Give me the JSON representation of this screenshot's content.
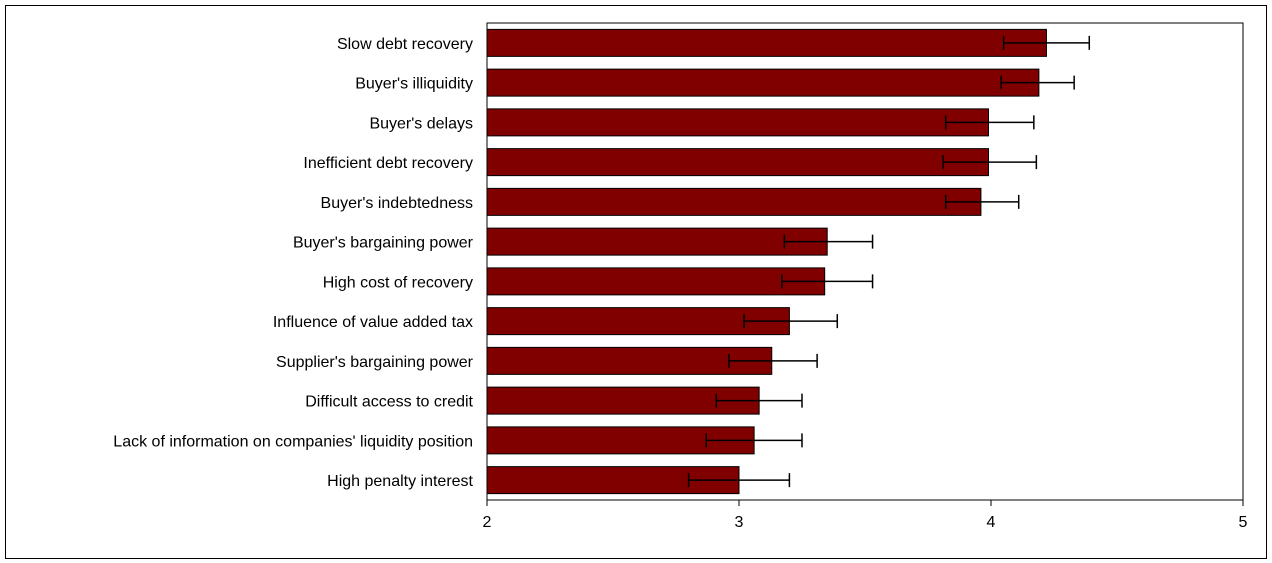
{
  "chart_data": {
    "type": "bar",
    "orientation": "horizontal",
    "title": "",
    "xlabel": "",
    "ylabel": "",
    "xlim": [
      2,
      5
    ],
    "x_ticks": [
      "2",
      "3",
      "4",
      "5"
    ],
    "grid": false,
    "legend": "none",
    "bar_color": "#800000",
    "categories": [
      "Slow debt recovery",
      "Buyer's illiquidity",
      "Buyer's delays",
      "Inefficient debt recovery",
      "Buyer's indebtedness",
      "Buyer's bargaining power",
      "High cost of recovery",
      "Influence of value added tax",
      "Supplier's bargaining power",
      "Difficult access to credit",
      "Lack of information on companies' liquidity position",
      "High penalty interest"
    ],
    "values": [
      4.22,
      4.19,
      3.99,
      3.99,
      3.96,
      3.35,
      3.34,
      3.2,
      3.13,
      3.08,
      3.06,
      3.0
    ],
    "error_low": [
      4.05,
      4.04,
      3.82,
      3.81,
      3.82,
      3.18,
      3.17,
      3.02,
      2.96,
      2.91,
      2.87,
      2.8
    ],
    "error_high": [
      4.39,
      4.33,
      4.17,
      4.18,
      4.11,
      3.53,
      3.53,
      3.39,
      3.31,
      3.25,
      3.25,
      3.2
    ]
  }
}
